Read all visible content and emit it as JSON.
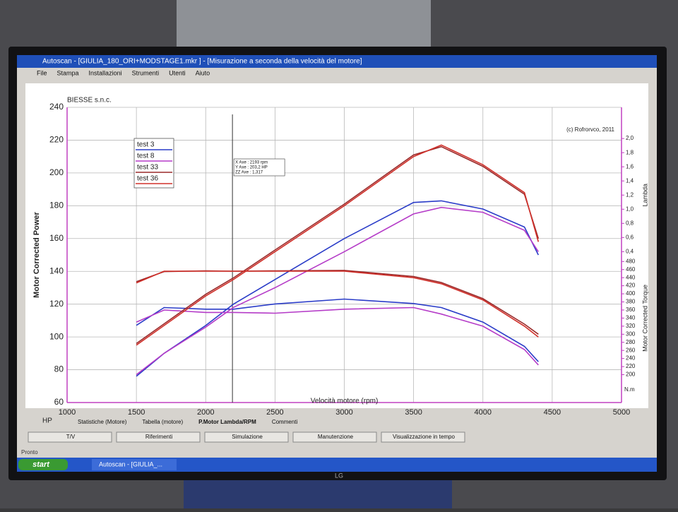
{
  "window": {
    "title": "Autoscan - [GIULIA_180_ORI+MODSTAGE1.mkr ] - [Misurazione a seconda della velocità del motore]",
    "menu": [
      "File",
      "Stampa",
      "Installazioni",
      "Strumenti",
      "Utenti",
      "Aiuto"
    ],
    "tabs": [
      "Statistiche (Motore)",
      "Tabella (motore)",
      "P.Motor Lambda/RPM",
      "Commenti"
    ],
    "toolbar": [
      "T/V",
      "Riferimenti",
      "Simulazione",
      "Manutenzione",
      "Visualizzazione in tempo"
    ],
    "status": "Pronto",
    "taskbar": [
      "start",
      "Autoscan - [GIULIA_..."
    ],
    "brand": "LG"
  },
  "chart_data": {
    "type": "line",
    "title": "BIESSE s.n.c.",
    "subtitle": "(c) Rofrorvco, 2011",
    "x_label": "Velocità motore (rpm)",
    "y_label": "Motor Corrected Power",
    "y_unit": "HP",
    "y2_label": "Motor Corrected Torque",
    "y2_unit": "N.m",
    "y3_label": "Lambda",
    "x": [
      1500,
      1700,
      2000,
      2200,
      2500,
      3000,
      3500,
      3700,
      4000,
      4300,
      4400
    ],
    "xlim": [
      1000,
      5000
    ],
    "xticks": [
      1000,
      1500,
      2000,
      2500,
      3000,
      3500,
      4000,
      4500,
      5000
    ],
    "ylim": [
      60,
      240
    ],
    "yticks": [
      60,
      80,
      100,
      120,
      140,
      160,
      180,
      200,
      220,
      240
    ],
    "y2lim": [
      200,
      480
    ],
    "y2ticks": [
      200,
      220,
      240,
      260,
      280,
      300,
      320,
      340,
      360,
      380,
      400,
      420,
      440,
      460,
      480
    ],
    "y3lim": [
      0.4,
      2.0
    ],
    "y3ticks": [
      {
        "value": 0.4,
        "label": "0,4"
      },
      {
        "value": 0.6,
        "label": "0,6"
      },
      {
        "value": 0.8,
        "label": "0,8"
      },
      {
        "value": 1.0,
        "label": "1,0"
      },
      {
        "value": 1.2,
        "label": "1,2"
      },
      {
        "value": 1.4,
        "label": "1,4"
      },
      {
        "value": 1.6,
        "label": "1,6"
      },
      {
        "value": 1.8,
        "label": "1,8"
      },
      {
        "value": 2.0,
        "label": "2,0"
      }
    ],
    "grid": true,
    "legend": "upper left",
    "cursor": {
      "x": 2193,
      "labels": [
        "X Axe : 2193 rpm",
        "Y Axe : 203,2 HP",
        "ZZ Axe : 1,317"
      ]
    },
    "series": [
      {
        "name": "test 3",
        "color": "#2a3cc8",
        "values": [
          76,
          90,
          107,
          120,
          135,
          160,
          182,
          183,
          178,
          167,
          150
        ],
        "y2_values": [
          322,
          366,
          362,
          362,
          375,
          387,
          376,
          366,
          330,
          270,
          232
        ]
      },
      {
        "name": "test 8",
        "color": "#b53cc8",
        "values": [
          77,
          90,
          106,
          118,
          130,
          152,
          175,
          179,
          176,
          165,
          152
        ],
        "y2_values": [
          330,
          360,
          354,
          354,
          352,
          362,
          366,
          350,
          320,
          262,
          224
        ]
      },
      {
        "name": "test 33",
        "color": "#9a2a2a",
        "values": [
          96,
          108,
          126,
          136,
          153,
          181,
          211,
          216,
          204,
          187,
          160
        ],
        "y2_values": [
          430,
          455,
          457,
          456,
          457,
          458,
          443,
          428,
          388,
          325,
          300
        ]
      },
      {
        "name": "test 36",
        "color": "#d0302a",
        "values": [
          95,
          107,
          125,
          135,
          152,
          180,
          210,
          217,
          205,
          188,
          158
        ],
        "y2_values": [
          427,
          456,
          456,
          456,
          456,
          456,
          440,
          425,
          385,
          320,
          293
        ]
      }
    ]
  }
}
